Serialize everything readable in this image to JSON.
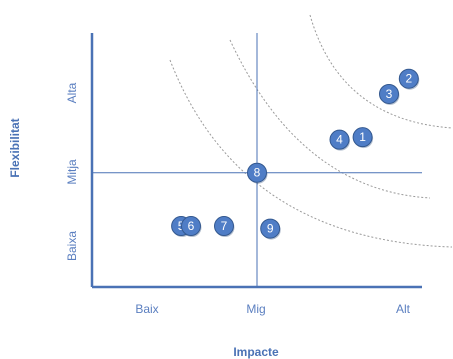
{
  "chart_data": {
    "type": "scatter",
    "xlabel": "Impacte",
    "ylabel": "Flexibilitat",
    "x_ticks": [
      "Baix",
      "Mig",
      "Alt"
    ],
    "y_ticks": [
      "Baixa",
      "Mitja",
      "Alta"
    ],
    "xlim": [
      0,
      10
    ],
    "ylim": [
      0,
      10
    ],
    "grid": false,
    "colors": {
      "axis": "#4a72b5",
      "tick_text": "#5b7fc0",
      "title_text": "#4a72b5",
      "point_fill": "#4f7dc6",
      "point_stroke": "#33588f",
      "curve": "#9a9a9a"
    },
    "points": [
      {
        "label": "1",
        "x": 8.2,
        "y": 5.9
      },
      {
        "label": "2",
        "x": 9.6,
        "y": 8.2
      },
      {
        "label": "3",
        "x": 9.0,
        "y": 7.6
      },
      {
        "label": "4",
        "x": 7.5,
        "y": 5.8
      },
      {
        "label": "5",
        "x": 2.7,
        "y": 2.4
      },
      {
        "label": "6",
        "x": 3.0,
        "y": 2.4
      },
      {
        "label": "7",
        "x": 4.0,
        "y": 2.4
      },
      {
        "label": "8",
        "x": 5.0,
        "y": 4.5
      },
      {
        "label": "9",
        "x": 5.4,
        "y": 2.3
      }
    ]
  }
}
